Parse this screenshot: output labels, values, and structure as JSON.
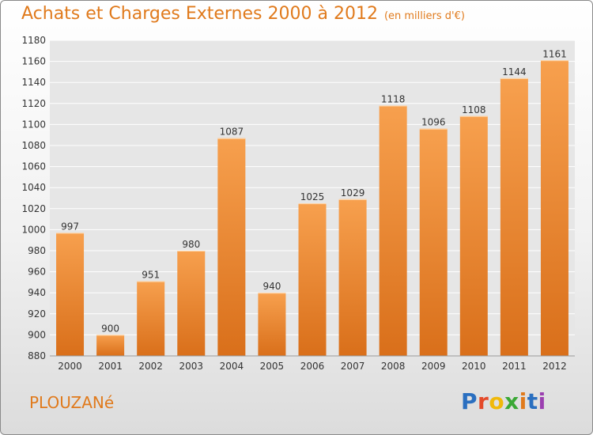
{
  "title": "Achats et Charges Externes 2000 à 2012",
  "unit_label": "(en milliers d'€)",
  "city": "PLOUZANé",
  "logo": {
    "letters": [
      "P",
      "r",
      "o",
      "x",
      "i",
      "t",
      "i"
    ],
    "colors": [
      "#2a6fc0",
      "#e44a2a",
      "#f0b90a",
      "#3aa835",
      "#e07a1c",
      "#2a6fc0",
      "#9b3fb0"
    ]
  },
  "colors": {
    "bar_top": "#f7a04e",
    "bar_bottom": "#d96f1a",
    "accent": "#e07a1c",
    "grid": "#ffffff"
  },
  "chart_data": {
    "type": "bar",
    "title": "Achats et Charges Externes 2000 à 2012",
    "categories": [
      "2000",
      "2001",
      "2002",
      "2003",
      "2004",
      "2005",
      "2006",
      "2007",
      "2008",
      "2009",
      "2010",
      "2011",
      "2012"
    ],
    "values": [
      997,
      900,
      951,
      980,
      1087,
      940,
      1025,
      1029,
      1118,
      1096,
      1108,
      1144,
      1161
    ],
    "ylim": [
      880,
      1180
    ],
    "yticks": [
      880,
      900,
      920,
      940,
      960,
      980,
      1000,
      1020,
      1040,
      1060,
      1080,
      1100,
      1120,
      1140,
      1160,
      1180
    ],
    "grid": true,
    "xlabel": "",
    "ylabel": ""
  }
}
